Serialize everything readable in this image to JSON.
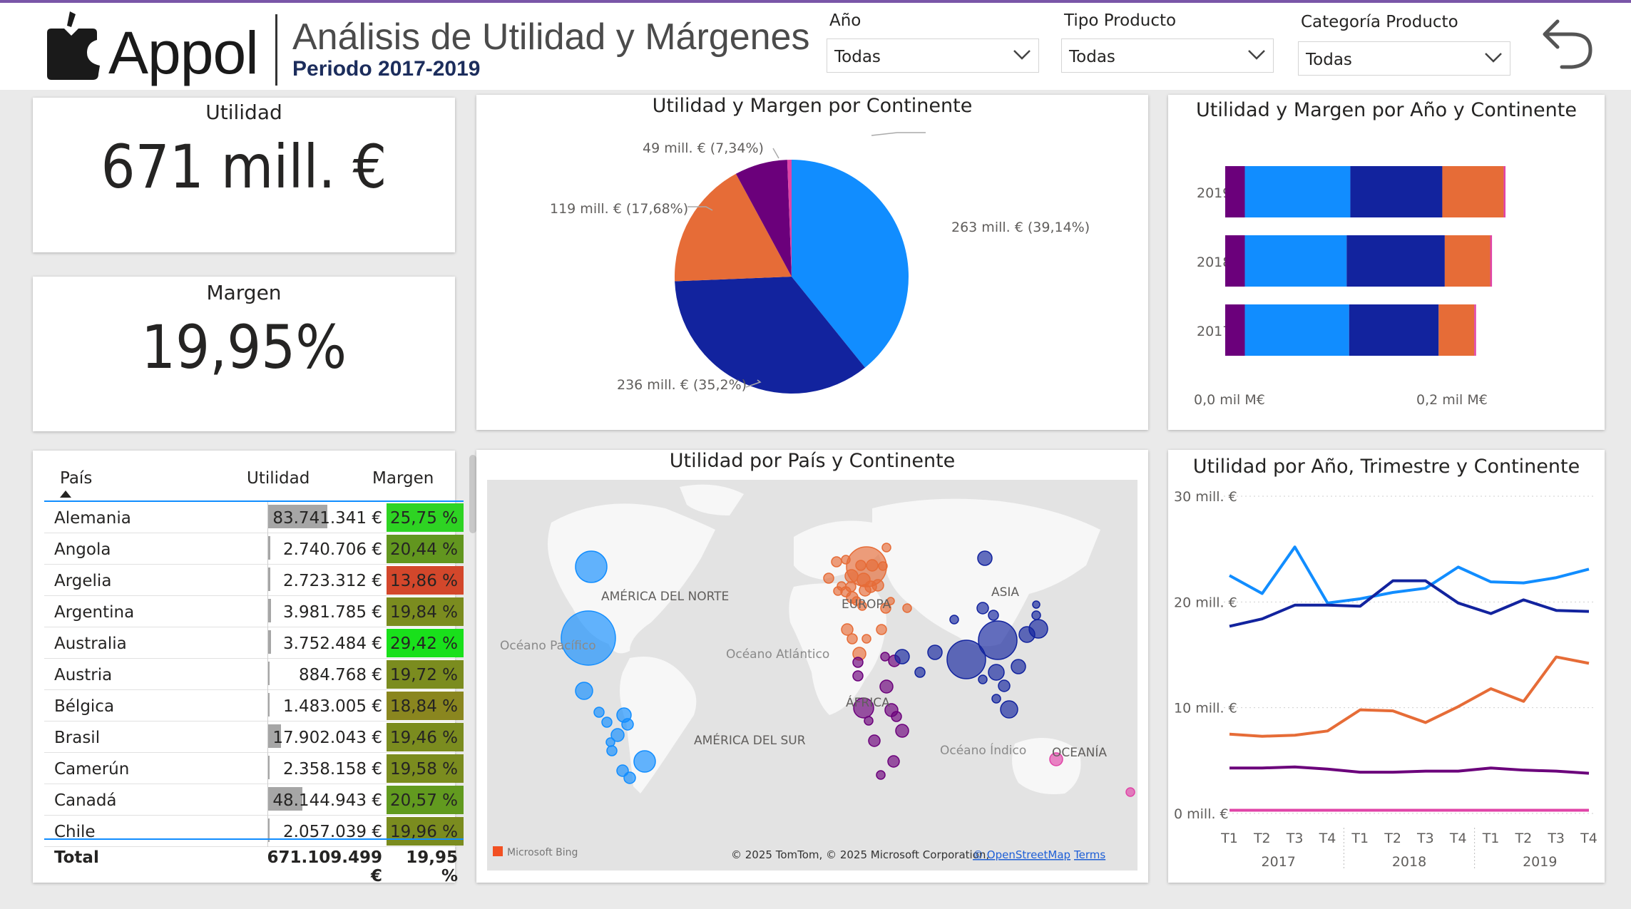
{
  "header": {
    "logo_text": "Appol",
    "title": "Análisis de Utilidad y Márgenes",
    "subtitle": "Periodo 2017-2019",
    "back_icon": "back-arrow-icon"
  },
  "slicers": [
    {
      "label": "Año",
      "value": "Todas"
    },
    {
      "label": "Tipo Producto",
      "value": "Todas"
    },
    {
      "label": "Categoría Producto",
      "value": "Todas"
    }
  ],
  "kpis": {
    "utilidad": {
      "title": "Utilidad",
      "value": "671 mill. €"
    },
    "margen": {
      "title": "Margen",
      "value": "19,95%"
    }
  },
  "colors": {
    "america_norte": "#118dff",
    "europa": "#e66c37",
    "asia": "#12239e",
    "africa": "#6b007b",
    "oceania": "#e044a7",
    "america_sur": "#1e7fd6"
  },
  "table": {
    "headers": {
      "pais": "País",
      "utilidad": "Utilidad",
      "margen": "Margen"
    },
    "rows": [
      {
        "pais": "Alemania",
        "utilidad": "83.741.341 €",
        "margen": "25,75 %",
        "bar": 0.32,
        "color": "#2ed323"
      },
      {
        "pais": "Angola",
        "utilidad": "2.740.706 €",
        "margen": "20,44 %",
        "bar": 0.01,
        "color": "#62961f"
      },
      {
        "pais": "Argelia",
        "utilidad": "2.723.312 €",
        "margen": "13,86 %",
        "bar": 0.01,
        "color": "#d3472b"
      },
      {
        "pais": "Argentina",
        "utilidad": "3.981.785 €",
        "margen": "19,84 %",
        "bar": 0.015,
        "color": "#7b8c1f"
      },
      {
        "pais": "Australia",
        "utilidad": "3.752.484 €",
        "margen": "29,42 %",
        "bar": 0.015,
        "color": "#19e01b"
      },
      {
        "pais": "Austria",
        "utilidad": "884.768 €",
        "margen": "19,72 %",
        "bar": 0.003,
        "color": "#7b8c1f"
      },
      {
        "pais": "Bélgica",
        "utilidad": "1.483.005 €",
        "margen": "18,84 %",
        "bar": 0.006,
        "color": "#8a861f"
      },
      {
        "pais": "Brasil",
        "utilidad": "17.902.043 €",
        "margen": "19,46 %",
        "bar": 0.07,
        "color": "#7b8c1f"
      },
      {
        "pais": "Camerún",
        "utilidad": "2.358.158 €",
        "margen": "19,58 %",
        "bar": 0.009,
        "color": "#7b8c1f"
      },
      {
        "pais": "Canadá",
        "utilidad": "48.144.943 €",
        "margen": "20,57 %",
        "bar": 0.185,
        "color": "#629a1f"
      },
      {
        "pais": "Chile",
        "utilidad": "2.057.039 €",
        "margen": "19,96 %",
        "bar": 0.008,
        "color": "#7b8c1f"
      }
    ],
    "total": {
      "label": "Total",
      "utilidad": "671.109.499 €",
      "margen": "19,95 %"
    }
  },
  "pie": {
    "title": "Utilidad y Margen por Continente",
    "labels": [
      "263 mill. € (39,14%)",
      "236 mill. € (35,2%)",
      "119 mill. € (17,68%)",
      "49 mill. € (7,34%)"
    ]
  },
  "bars": {
    "title": "Utilidad y Margen por Año y Continente",
    "axis_labels": [
      "0,0 mil M€",
      "0,2 mil M€"
    ]
  },
  "map": {
    "title": "Utilidad por País y Continente",
    "labels": {
      "america_norte": "AMÉRICA DEL NORTE",
      "europa": "EUROPA",
      "asia": "ASIA",
      "africa": "ÁFRICA",
      "america_sur": "AMÉRICA DEL SUR",
      "oceania": "OCEANÍA",
      "oceano_pacifico": "Océano Pacífico",
      "oceano_atlantico": "Océano Atlántico",
      "oceano_indico": "Océano Índico"
    },
    "bing": "Microsoft Bing",
    "copyright": "© 2025 TomTom, © 2025 Microsoft Corporation,",
    "osm": "© OpenStreetMap",
    "terms": "Terms"
  },
  "line": {
    "title": "Utilidad por Año, Trimestre y Continente",
    "y_labels": [
      "30 mill. €",
      "20 mill. €",
      "10 mill. €",
      "0 mill. €"
    ],
    "quarter_labels": [
      "T1",
      "T2",
      "T3",
      "T4",
      "T1",
      "T2",
      "T3",
      "T4",
      "T1",
      "T2",
      "T3",
      "T4"
    ],
    "year_labels": [
      "2017",
      "2018",
      "2019"
    ]
  },
  "chart_data": [
    {
      "type": "pie",
      "title": "Utilidad y Margen por Continente",
      "series": [
        {
          "values": [
            263,
            236,
            119,
            49,
            4
          ]
        }
      ],
      "percentages": [
        39.14,
        35.2,
        17.68,
        7.34,
        0.64
      ],
      "colors": [
        "#118dff",
        "#12239e",
        "#e66c37",
        "#6b007b",
        "#e044a7"
      ]
    },
    {
      "type": "bar",
      "title": "Utilidad y Margen por Año y Continente",
      "categories": [
        "2019",
        "2018",
        "2017"
      ],
      "xlim": [
        0,
        0.25
      ],
      "series": [
        {
          "values": [
            0.016,
            0.016,
            0.016
          ],
          "color": "#6b007b"
        },
        {
          "values": [
            0.086,
            0.083,
            0.085
          ],
          "color": "#118dff"
        },
        {
          "values": [
            0.075,
            0.08,
            0.073
          ],
          "color": "#12239e"
        },
        {
          "values": [
            0.05,
            0.037,
            0.029
          ],
          "color": "#e66c37"
        },
        {
          "values": [
            0.0015,
            0.0015,
            0.0015
          ],
          "color": "#e044a7"
        }
      ]
    },
    {
      "type": "line",
      "title": "Utilidad por Año, Trimestre y Continente",
      "x": [
        "2017 T1",
        "2017 T2",
        "2017 T3",
        "2017 T4",
        "2018 T1",
        "2018 T2",
        "2018 T3",
        "2018 T4",
        "2019 T1",
        "2019 T2",
        "2019 T3",
        "2019 T4"
      ],
      "ylim": [
        0,
        30
      ],
      "series": [
        {
          "color": "#118dff",
          "values": [
            22.5,
            20.8,
            25.2,
            19.9,
            20.3,
            20.9,
            21.3,
            23.3,
            21.9,
            21.8,
            22.3,
            23.1
          ]
        },
        {
          "color": "#12239e",
          "values": [
            17.7,
            18.4,
            19.7,
            19.7,
            19.6,
            22.0,
            22.0,
            19.9,
            18.9,
            20.2,
            19.2,
            19.1
          ]
        },
        {
          "color": "#e66c37",
          "values": [
            7.5,
            7.3,
            7.4,
            7.8,
            9.8,
            9.7,
            8.6,
            10.1,
            11.8,
            10.6,
            14.8,
            14.2
          ]
        },
        {
          "color": "#6b007b",
          "values": [
            4.3,
            4.3,
            4.4,
            4.2,
            3.9,
            3.9,
            4.0,
            4.0,
            4.3,
            4.1,
            4.0,
            3.8
          ]
        },
        {
          "color": "#e044a7",
          "values": [
            0.3,
            0.3,
            0.3,
            0.3,
            0.3,
            0.3,
            0.3,
            0.3,
            0.3,
            0.3,
            0.3,
            0.3
          ]
        }
      ]
    }
  ]
}
